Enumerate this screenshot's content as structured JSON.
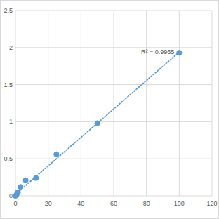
{
  "chart_data": {
    "type": "scatter",
    "annotation": "R² = 0.9965",
    "series": [
      {
        "x": [
          0,
          0.78,
          1.56,
          3.125,
          6.25,
          12.5,
          25,
          50,
          100
        ],
        "values": [
          0,
          0.02,
          0.05,
          0.12,
          0.21,
          0.24,
          0.56,
          0.98,
          1.93
        ],
        "color": "#5b9bd5",
        "marker": "circle"
      },
      {
        "type": "line",
        "x": [
          0,
          100
        ],
        "values": [
          0.02,
          1.94
        ],
        "color": "#5b9bd5",
        "line_style": "dotted"
      }
    ],
    "xlim": [
      0,
      120
    ],
    "xticks": [
      0,
      20,
      40,
      60,
      80,
      100,
      120
    ],
    "ylim": [
      0,
      2.5
    ],
    "yticks": [
      0,
      0.5,
      1,
      1.5,
      2,
      2.5
    ],
    "grid": true
  }
}
